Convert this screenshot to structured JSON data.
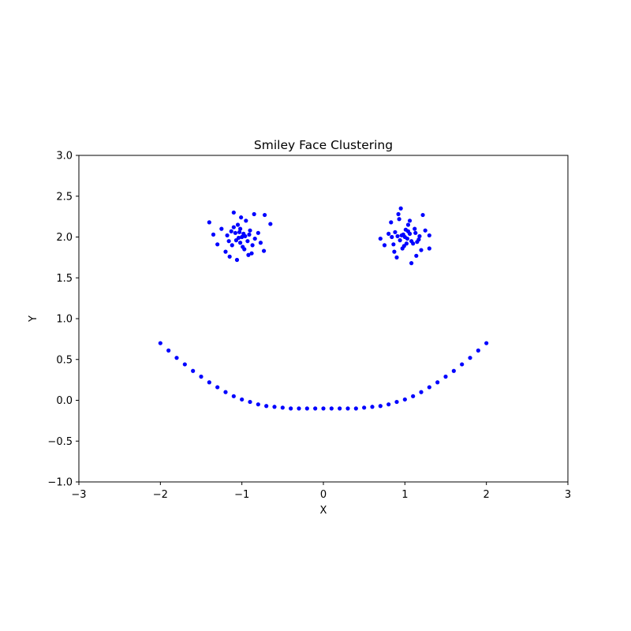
{
  "chart_data": {
    "type": "scatter",
    "title": "Smiley Face Clustering",
    "xlabel": "X",
    "ylabel": "Y",
    "xlim": [
      -3,
      3
    ],
    "ylim": [
      -1,
      3
    ],
    "xticks": [
      -3,
      -2,
      -1,
      0,
      1,
      2,
      3
    ],
    "yticks": [
      -1.0,
      -0.5,
      0.0,
      0.5,
      1.0,
      1.5,
      2.0,
      2.5,
      3.0
    ],
    "xtick_labels": [
      "−3",
      "−2",
      "−1",
      "0",
      "1",
      "2",
      "3"
    ],
    "ytick_labels": [
      "−1.0",
      "−0.5",
      "0.0",
      "0.5",
      "1.0",
      "1.5",
      "2.0",
      "2.5",
      "3.0"
    ],
    "grid": false,
    "marker_color": "#0000ff",
    "series": [
      {
        "points": [
          [
            -1.0,
            2.0
          ],
          [
            -1.08,
            2.05
          ],
          [
            -0.93,
            1.95
          ],
          [
            -1.12,
            1.9
          ],
          [
            -0.9,
            2.08
          ],
          [
            -1.05,
            2.15
          ],
          [
            -0.97,
            1.85
          ],
          [
            -1.18,
            2.02
          ],
          [
            -0.84,
            1.98
          ],
          [
            -1.02,
            1.93
          ],
          [
            -1.1,
            2.12
          ],
          [
            -0.95,
            2.2
          ],
          [
            -1.2,
            1.82
          ],
          [
            -0.88,
            1.8
          ],
          [
            -1.25,
            2.1
          ],
          [
            -0.8,
            2.05
          ],
          [
            -1.01,
            2.24
          ],
          [
            -1.15,
            1.76
          ],
          [
            -0.92,
            1.78
          ],
          [
            -1.35,
            2.03
          ],
          [
            -0.72,
            2.27
          ],
          [
            -1.4,
            2.18
          ],
          [
            -0.73,
            1.83
          ],
          [
            -0.65,
            2.16
          ],
          [
            -1.06,
            1.72
          ],
          [
            -1.1,
            2.3
          ],
          [
            -0.85,
            2.28
          ],
          [
            -1.3,
            1.91
          ],
          [
            -0.77,
            1.93
          ],
          [
            -0.98,
            2.04
          ],
          [
            -1.04,
            1.99
          ],
          [
            -0.96,
            2.01
          ],
          [
            -1.07,
            1.96
          ],
          [
            -0.91,
            2.03
          ],
          [
            -1.13,
            2.07
          ],
          [
            -1.02,
            2.1
          ],
          [
            -0.87,
            1.9
          ],
          [
            -1.16,
            1.95
          ],
          [
            -0.99,
            1.88
          ],
          [
            -1.03,
            2.06
          ],
          [
            1.0,
            2.0
          ],
          [
            1.06,
            2.04
          ],
          [
            0.94,
            1.96
          ],
          [
            1.1,
            1.92
          ],
          [
            0.88,
            2.06
          ],
          [
            1.04,
            2.15
          ],
          [
            0.97,
            1.86
          ],
          [
            1.18,
            2.01
          ],
          [
            0.84,
            2.0
          ],
          [
            1.02,
            1.92
          ],
          [
            1.12,
            2.1
          ],
          [
            0.93,
            2.22
          ],
          [
            1.2,
            1.84
          ],
          [
            0.87,
            1.82
          ],
          [
            1.25,
            2.08
          ],
          [
            0.8,
            2.04
          ],
          [
            0.95,
            2.35
          ],
          [
            1.14,
            1.77
          ],
          [
            0.9,
            1.75
          ],
          [
            1.3,
            2.02
          ],
          [
            0.7,
            1.98
          ],
          [
            1.22,
            2.27
          ],
          [
            0.75,
            1.9
          ],
          [
            1.3,
            1.86
          ],
          [
            1.08,
            1.68
          ],
          [
            0.83,
            2.18
          ],
          [
            1.06,
            2.2
          ],
          [
            0.92,
            2.28
          ],
          [
            1.17,
            1.97
          ],
          [
            0.98,
            2.03
          ],
          [
            1.03,
            1.98
          ],
          [
            0.96,
            2.02
          ],
          [
            1.08,
            1.95
          ],
          [
            0.91,
            2.01
          ],
          [
            1.13,
            2.05
          ],
          [
            1.01,
            2.09
          ],
          [
            0.86,
            1.91
          ],
          [
            1.15,
            1.94
          ],
          [
            0.99,
            1.89
          ],
          [
            1.04,
            2.07
          ],
          [
            -2.0,
            0.7
          ],
          [
            -1.9,
            0.61
          ],
          [
            -1.8,
            0.52
          ],
          [
            -1.7,
            0.44
          ],
          [
            -1.6,
            0.36
          ],
          [
            -1.5,
            0.29
          ],
          [
            -1.4,
            0.22
          ],
          [
            -1.3,
            0.16
          ],
          [
            -1.2,
            0.1
          ],
          [
            -1.1,
            0.05
          ],
          [
            -1.0,
            0.01
          ],
          [
            -0.9,
            -0.02
          ],
          [
            -0.8,
            -0.05
          ],
          [
            -0.7,
            -0.07
          ],
          [
            -0.6,
            -0.08
          ],
          [
            -0.5,
            -0.09
          ],
          [
            -0.4,
            -0.1
          ],
          [
            -0.3,
            -0.1
          ],
          [
            -0.2,
            -0.1
          ],
          [
            -0.1,
            -0.1
          ],
          [
            0.0,
            -0.1
          ],
          [
            0.1,
            -0.1
          ],
          [
            0.2,
            -0.1
          ],
          [
            0.3,
            -0.1
          ],
          [
            0.4,
            -0.1
          ],
          [
            0.5,
            -0.09
          ],
          [
            0.6,
            -0.08
          ],
          [
            0.7,
            -0.07
          ],
          [
            0.8,
            -0.05
          ],
          [
            0.9,
            -0.02
          ],
          [
            1.0,
            0.01
          ],
          [
            1.1,
            0.05
          ],
          [
            1.2,
            0.1
          ],
          [
            1.3,
            0.16
          ],
          [
            1.4,
            0.22
          ],
          [
            1.5,
            0.29
          ],
          [
            1.6,
            0.36
          ],
          [
            1.7,
            0.44
          ],
          [
            1.8,
            0.52
          ],
          [
            1.9,
            0.61
          ],
          [
            2.0,
            0.7
          ]
        ]
      }
    ]
  }
}
